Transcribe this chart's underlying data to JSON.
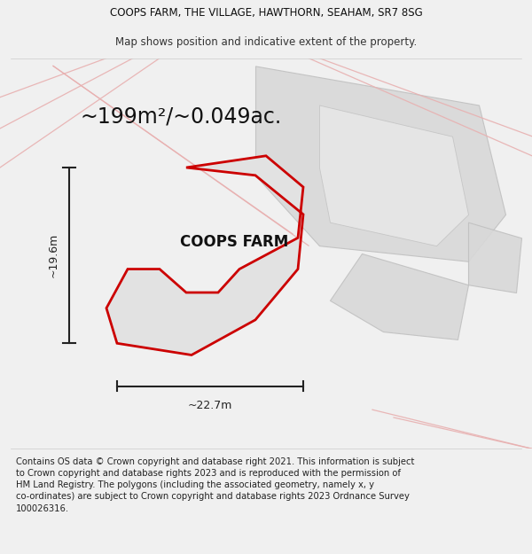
{
  "title_line1": "COOPS FARM, THE VILLAGE, HAWTHORN, SEAHAM, SR7 8SG",
  "title_line2": "Map shows position and indicative extent of the property.",
  "area_label": "~199m²/~0.049ac.",
  "property_label": "COOPS FARM",
  "dim_vertical": "~19.6m",
  "dim_horizontal": "~22.7m",
  "footer_text": "Contains OS data © Crown copyright and database right 2021. This information is subject to Crown copyright and database rights 2023 and is reproduced with the permission of HM Land Registry. The polygons (including the associated geometry, namely x, y co-ordinates) are subject to Crown copyright and database rights 2023 Ordnance Survey 100026316.",
  "bg_color": "#f0f0f0",
  "map_bg": "#f8f8f8",
  "property_fill": "#e2e2e2",
  "property_edge": "#cc0000",
  "context_fill": "#d8d8d8",
  "context_edge": "#c0c0c0",
  "road_color": "#e8b0b0",
  "dim_color": "#222222",
  "title_fontsize": 8.5,
  "subtitle_fontsize": 8.5,
  "area_fontsize": 17,
  "label_fontsize": 12,
  "footer_fontsize": 7.2
}
